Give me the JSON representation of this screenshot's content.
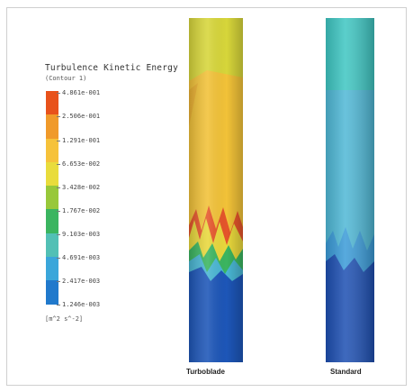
{
  "legend": {
    "title": "Turbulence Kinetic Energy",
    "subtitle": "(Contour 1)",
    "units": "[m^2 s^-2]",
    "ticks": [
      "4.861e-001",
      "2.506e-001",
      "1.291e-001",
      "6.653e-002",
      "3.428e-002",
      "1.767e-002",
      "9.103e-003",
      "4.691e-003",
      "2.417e-003",
      "1.246e-003"
    ],
    "colors": [
      "#e8521b",
      "#f09a2a",
      "#f6c23a",
      "#e9dc3c",
      "#98c83a",
      "#3bb560",
      "#52c0b5",
      "#3aa6da",
      "#2079cc",
      "#1c4fb0"
    ]
  },
  "captions": {
    "left": "Turboblade",
    "right": "Standard"
  },
  "cylinders": {
    "turboblade_colors": {
      "top": "#c9d63a",
      "middle": "#f2c238",
      "hot": "#e5552a",
      "bottom": "#1d56b8"
    },
    "standard_colors": {
      "top": "#3ec6c2",
      "middle": "#4fb8d6",
      "bottom": "#1d4fb2"
    }
  }
}
